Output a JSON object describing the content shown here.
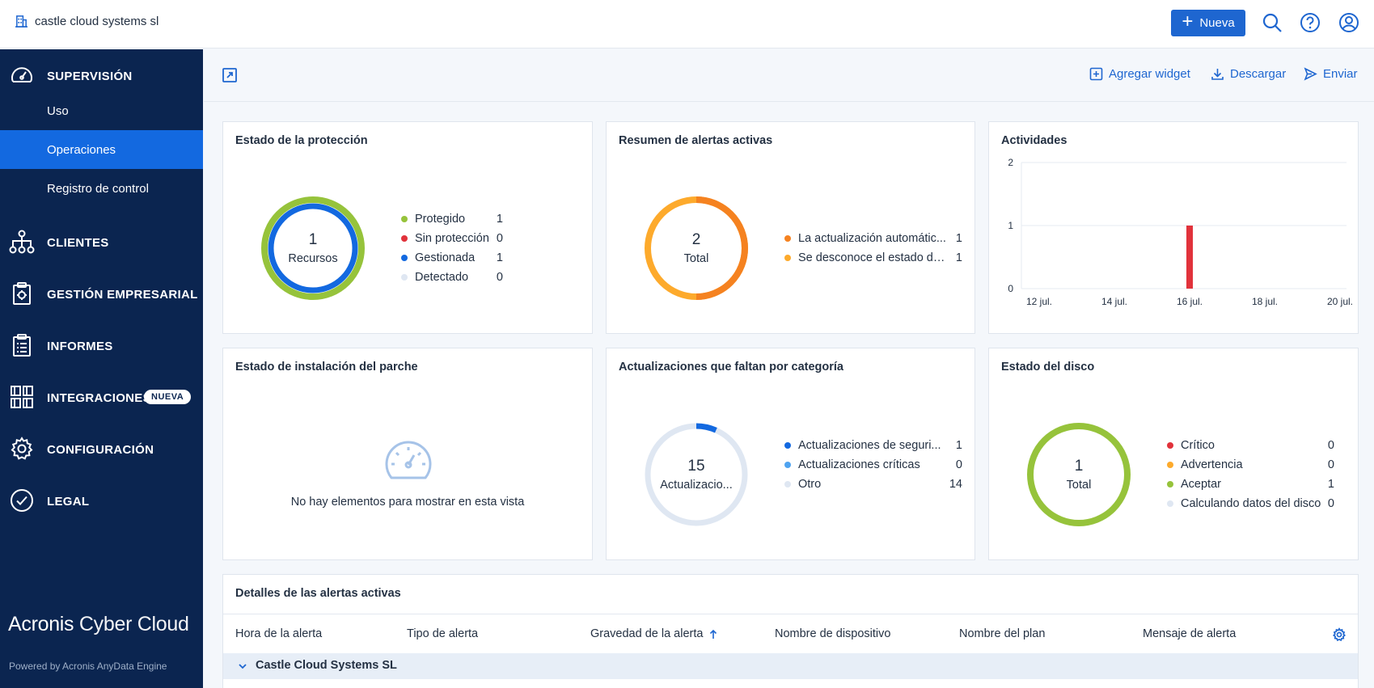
{
  "topbar": {
    "tenant_name": "castle cloud systems sl",
    "new_button_label": "Nueva"
  },
  "sidebar": {
    "sections": [
      {
        "label": "SUPERVISIÓN",
        "icon": "gauge-icon"
      },
      {
        "label": "CLIENTES",
        "icon": "hierarchy-icon"
      },
      {
        "label": "GESTIÓN EMPRESARIAL",
        "icon": "clipboard-icon"
      },
      {
        "label": "INFORMES",
        "icon": "report-icon"
      },
      {
        "label": "INTEGRACIONES",
        "icon": "grid-icon",
        "badge": "NUEVA"
      },
      {
        "label": "CONFIGURACIÓN",
        "icon": "gear-icon"
      },
      {
        "label": "LEGAL",
        "icon": "check-circle-icon"
      }
    ],
    "sub_items": [
      "Uso",
      "Operaciones",
      "Registro de control"
    ],
    "active_sub_item": "Operaciones",
    "brand_part1": "Acronis",
    "brand_part2": "Cyber Cloud",
    "powered_by": "Powered by Acronis AnyData Engine"
  },
  "toolbar": {
    "add_widget": "Agregar widget",
    "download": "Descargar",
    "send": "Enviar"
  },
  "widgets": {
    "protection": {
      "title": "Estado de la protección",
      "center_value": "1",
      "center_label": "Recursos",
      "legend": [
        {
          "label": "Protegido",
          "value": "1",
          "color": "#96c33b"
        },
        {
          "label": "Sin protección",
          "value": "0",
          "color": "#e1323b"
        },
        {
          "label": "Gestionada",
          "value": "1",
          "color": "#1369e0"
        },
        {
          "label": "Detectado",
          "value": "0",
          "color": "#dfe7f2"
        }
      ]
    },
    "alerts_summary": {
      "title": "Resumen de alertas activas",
      "center_value": "2",
      "center_label": "Total",
      "legend": [
        {
          "label": "La actualización automátic...",
          "value": "1",
          "color": "#f58220"
        },
        {
          "label": "Se desconoce el estado de ...",
          "value": "1",
          "color": "#fdaa2c"
        }
      ]
    },
    "activities": {
      "title": "Actividades"
    },
    "patch": {
      "title": "Estado de instalación del parche",
      "empty_message": "No hay elementos para mostrar en esta vista"
    },
    "missing_updates": {
      "title": "Actualizaciones que faltan por categoría",
      "center_value": "15",
      "center_label": "Actualizacio...",
      "legend": [
        {
          "label": "Actualizaciones de seguri...",
          "value": "1",
          "color": "#1369e0"
        },
        {
          "label": "Actualizaciones críticas",
          "value": "0",
          "color": "#4fa3f0"
        },
        {
          "label": "Otro",
          "value": "14",
          "color": "#dfe7f2"
        }
      ]
    },
    "disk": {
      "title": "Estado del disco",
      "center_value": "1",
      "center_label": "Total",
      "legend": [
        {
          "label": "Crítico",
          "value": "0",
          "color": "#e1323b"
        },
        {
          "label": "Advertencia",
          "value": "0",
          "color": "#fdaa2c"
        },
        {
          "label": "Aceptar",
          "value": "1",
          "color": "#96c33b"
        },
        {
          "label": "Calculando datos del disco",
          "value": "0",
          "color": "#dfe7f2"
        }
      ]
    },
    "alert_details": {
      "title": "Detalles de las alertas activas",
      "columns": [
        "Hora de la alerta",
        "Tipo de alerta",
        "Gravedad de la alerta",
        "Nombre de dispositivo",
        "Nombre del plan",
        "Mensaje de alerta"
      ],
      "group_name": "Castle Cloud Systems SL"
    }
  },
  "chart_data": {
    "type": "bar",
    "x": [
      "12 jul.",
      "14 jul.",
      "16 jul.",
      "18 jul.",
      "20 jul."
    ],
    "xlabel": "",
    "ylabel": "",
    "ylim": [
      0,
      2
    ],
    "yticks": [
      "0",
      "1",
      "2"
    ],
    "series": [
      {
        "values": [
          {
            "x": "16 jul.",
            "y": 1
          }
        ],
        "color": "#e1323b"
      }
    ],
    "grid": true
  }
}
